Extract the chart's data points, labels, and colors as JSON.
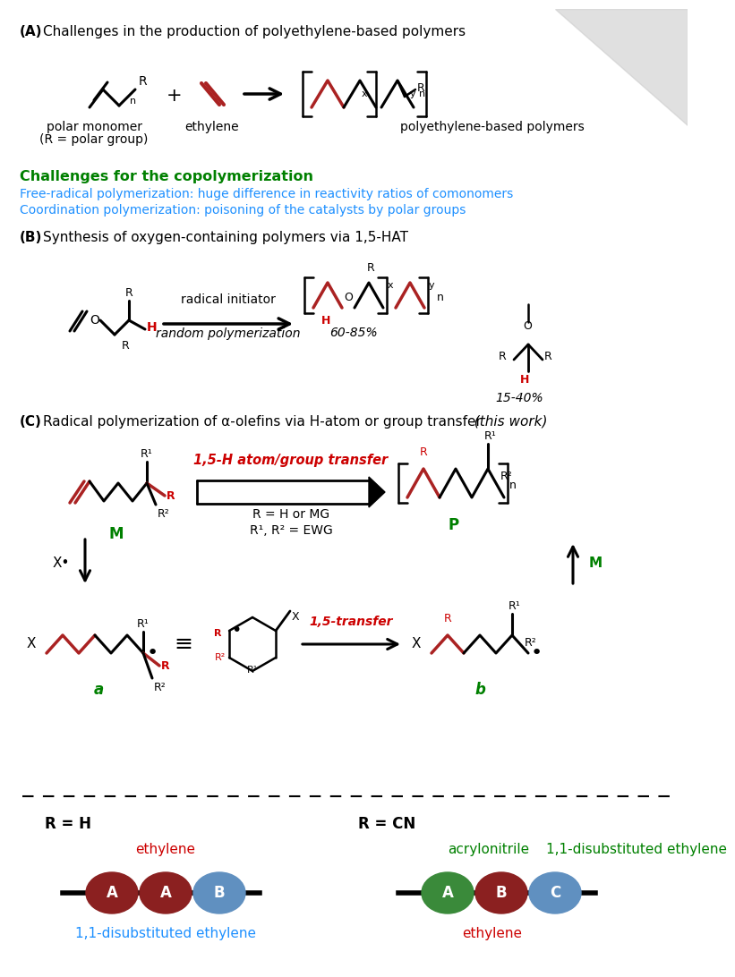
{
  "bg_color": "#ffffff",
  "green_color": "#008000",
  "blue_color": "#1E90FF",
  "red_color": "#CC0000",
  "dark_red_color": "#8B1A1A",
  "steel_blue": "#4682B4",
  "forest_green": "#228B22",
  "title_A": "Challenges in the production of polyethylene-based polymers",
  "title_B": "Synthesis of oxygen-containing polymers via 1,5-HAT",
  "title_C": "Radical polymerization of α-olefins via H-atom or group transfer",
  "challenge_title": "Challenges for the copolymerization",
  "challenge_1": "Free-radical polymerization: huge difference in reactivity ratios of comonomers",
  "challenge_2": "Coordination polymerization: poisoning of the catalysts by polar groups",
  "label_polar_1": "polar monomer",
  "label_polar_2": "(R = polar group)",
  "label_ethylene": "ethylene",
  "label_poly": "polyethylene-based polymers",
  "label_radical": "radical initiator",
  "label_random": "random polymerization",
  "label_60_85": "60-85%",
  "label_15_40": "15-40%",
  "label_R_H_or_MG": "R = H or MG",
  "label_R1R2_EWG": "R¹, R² = EWG",
  "label_transfer_top": "1,5-H atom/group transfer",
  "label_transfer_bottom": "1,5-transfer",
  "label_R_H": "R = H",
  "label_R_CN": "R = CN",
  "label_ethylene_left": "ethylene",
  "label_11dis_left": "1,1-disubstituted ethylene",
  "label_acrylonitrile": "acrylonitrile",
  "label_11dis_right": "1,1-disubstituted ethylene",
  "label_ethylene_right": "ethylene",
  "sphere_dark_red": "#8B2020",
  "sphere_blue": "#6090C0",
  "sphere_green": "#3A8A3A"
}
